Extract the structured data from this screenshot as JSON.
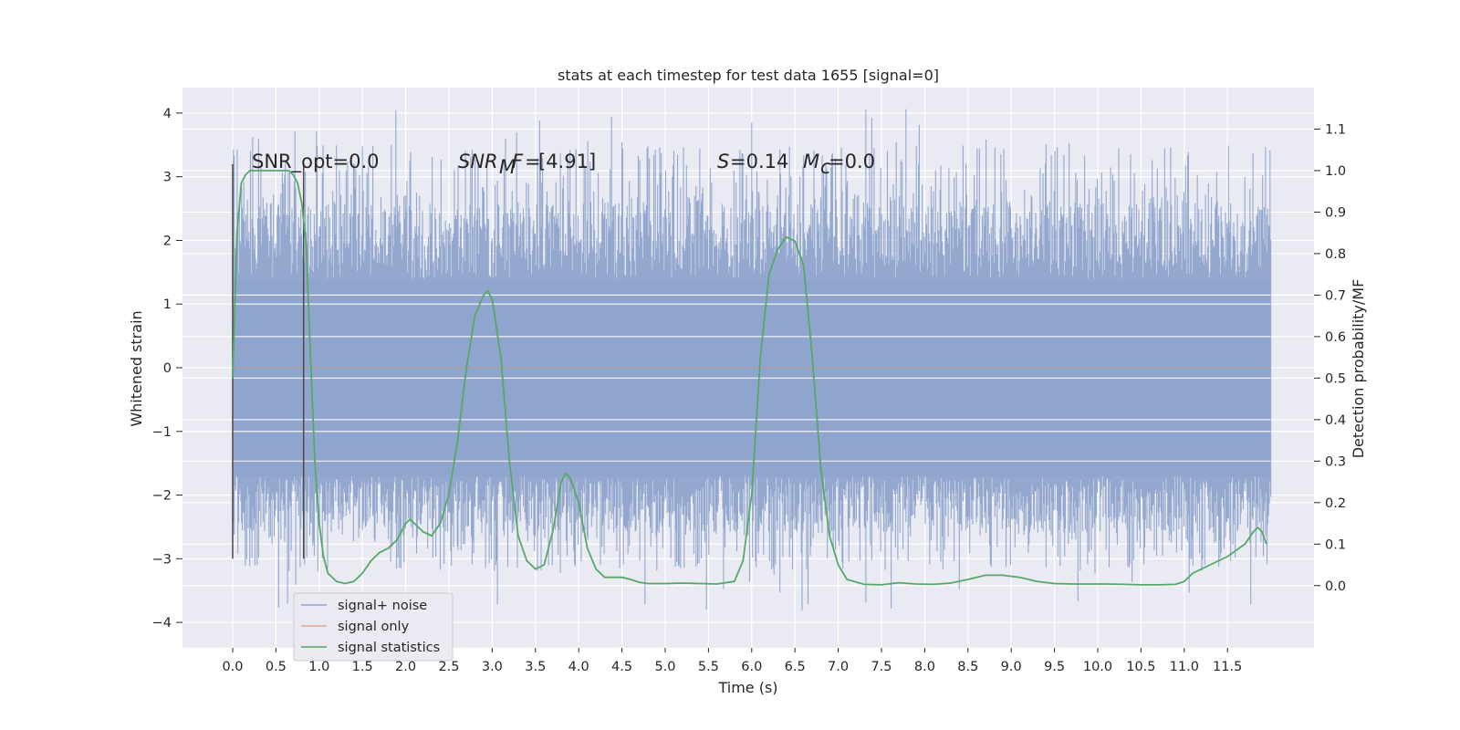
{
  "chart_data": {
    "type": "line",
    "title": "stats at each timestep for test data 1655 [signal=0]",
    "xlabel": "Time (s)",
    "ylabel": "Whitened strain",
    "y2label": "Detection probability/MF",
    "xlim": [
      -0.58,
      12.5
    ],
    "ylim": [
      -4.4,
      4.4
    ],
    "y2lim": [
      -0.15,
      1.2
    ],
    "xticks": [
      0.0,
      0.5,
      1.0,
      1.5,
      2.0,
      2.5,
      3.0,
      3.5,
      4.0,
      4.5,
      5.0,
      5.5,
      6.0,
      6.5,
      7.0,
      7.5,
      8.0,
      8.5,
      9.0,
      9.5,
      10.0,
      10.5,
      11.0,
      11.5
    ],
    "xtick_labels": [
      "0.0",
      "0.5",
      "1.0",
      "1.5",
      "2.0",
      "2.5",
      "3.0",
      "3.5",
      "4.0",
      "4.5",
      "5.0",
      "5.5",
      "6.0",
      "6.5",
      "7.0",
      "7.5",
      "8.0",
      "8.5",
      "9.0",
      "9.5",
      "10.0",
      "10.5",
      "11.0",
      "11.5"
    ],
    "yticks": [
      -4,
      -3,
      -2,
      -1,
      0,
      1,
      2,
      3,
      4
    ],
    "ytick_labels": [
      "−4",
      "−3",
      "−2",
      "−1",
      "0",
      "1",
      "2",
      "3",
      "4"
    ],
    "y2ticks": [
      0.0,
      0.1,
      0.2,
      0.3,
      0.4,
      0.5,
      0.6,
      0.7,
      0.8,
      0.9,
      1.0,
      1.1
    ],
    "y2tick_labels": [
      "0.0",
      "0.1",
      "0.2",
      "0.3",
      "0.4",
      "0.5",
      "0.6",
      "0.7",
      "0.8",
      "0.9",
      "1.0",
      "1.1"
    ],
    "grid": true,
    "legend_position": "lower-left",
    "series": [
      {
        "name": "signal+ noise",
        "axis": "left",
        "color": "#8fa4cc",
        "kind": "noise",
        "x_range": [
          0.0,
          12.0
        ],
        "envelope_low": [
          -1.7,
          -2.6,
          -3.2,
          -3.9
        ],
        "envelope_high": [
          1.4,
          2.6,
          3.5,
          4.1
        ]
      },
      {
        "name": "signal only",
        "axis": "left",
        "color": "#e8a890",
        "x": [
          0.0,
          12.0
        ],
        "y": [
          0.0,
          0.0
        ]
      },
      {
        "name": "signal statistics",
        "axis": "right",
        "color": "#55a868",
        "x": [
          0.0,
          0.05,
          0.1,
          0.15,
          0.2,
          0.3,
          0.4,
          0.5,
          0.6,
          0.65,
          0.7,
          0.75,
          0.8,
          0.85,
          0.9,
          0.95,
          1.0,
          1.05,
          1.1,
          1.2,
          1.3,
          1.4,
          1.5,
          1.6,
          1.7,
          1.8,
          1.9,
          2.0,
          2.05,
          2.1,
          2.2,
          2.3,
          2.4,
          2.5,
          2.6,
          2.7,
          2.8,
          2.9,
          2.95,
          3.0,
          3.1,
          3.2,
          3.3,
          3.4,
          3.5,
          3.6,
          3.7,
          3.8,
          3.85,
          3.9,
          4.0,
          4.1,
          4.2,
          4.3,
          4.4,
          4.5,
          4.6,
          4.7,
          4.8,
          5.0,
          5.2,
          5.4,
          5.6,
          5.8,
          5.9,
          6.0,
          6.1,
          6.2,
          6.3,
          6.4,
          6.5,
          6.6,
          6.7,
          6.8,
          6.9,
          7.0,
          7.1,
          7.3,
          7.5,
          7.7,
          7.9,
          8.1,
          8.3,
          8.5,
          8.7,
          8.9,
          9.1,
          9.3,
          9.5,
          9.7,
          9.9,
          10.1,
          10.3,
          10.5,
          10.7,
          10.9,
          11.0,
          11.1,
          11.3,
          11.5,
          11.7,
          11.8,
          11.85,
          11.9,
          11.95
        ],
        "y": [
          0.5,
          0.85,
          0.97,
          0.99,
          1.0,
          1.0,
          1.0,
          1.0,
          1.0,
          1.0,
          0.99,
          0.97,
          0.92,
          0.82,
          0.55,
          0.3,
          0.15,
          0.07,
          0.03,
          0.01,
          0.005,
          0.01,
          0.03,
          0.06,
          0.08,
          0.09,
          0.11,
          0.15,
          0.16,
          0.15,
          0.13,
          0.12,
          0.15,
          0.22,
          0.35,
          0.52,
          0.65,
          0.7,
          0.71,
          0.69,
          0.55,
          0.3,
          0.12,
          0.06,
          0.04,
          0.05,
          0.13,
          0.25,
          0.27,
          0.26,
          0.2,
          0.09,
          0.04,
          0.02,
          0.02,
          0.02,
          0.015,
          0.008,
          0.005,
          0.005,
          0.006,
          0.005,
          0.004,
          0.01,
          0.06,
          0.22,
          0.55,
          0.75,
          0.81,
          0.84,
          0.83,
          0.77,
          0.55,
          0.28,
          0.12,
          0.05,
          0.015,
          0.003,
          0.002,
          0.007,
          0.004,
          0.003,
          0.006,
          0.015,
          0.025,
          0.025,
          0.02,
          0.01,
          0.005,
          0.004,
          0.004,
          0.004,
          0.003,
          0.002,
          0.002,
          0.003,
          0.01,
          0.03,
          0.05,
          0.07,
          0.1,
          0.13,
          0.14,
          0.13,
          0.1
        ]
      }
    ],
    "overlay_lines": [
      {
        "x": 0.0,
        "y_range": [
          -3.0,
          3.2
        ],
        "color": "#4a4a4a"
      },
      {
        "x": 0.82,
        "y_range": [
          -3.0,
          3.2
        ],
        "color": "#4a4a4a"
      }
    ],
    "annotations": {
      "snr_opt": "SNR_opt=0.0",
      "snr_mf": "[4.91]",
      "s_val": "=0.14",
      "mc_val": "=0.0"
    }
  }
}
